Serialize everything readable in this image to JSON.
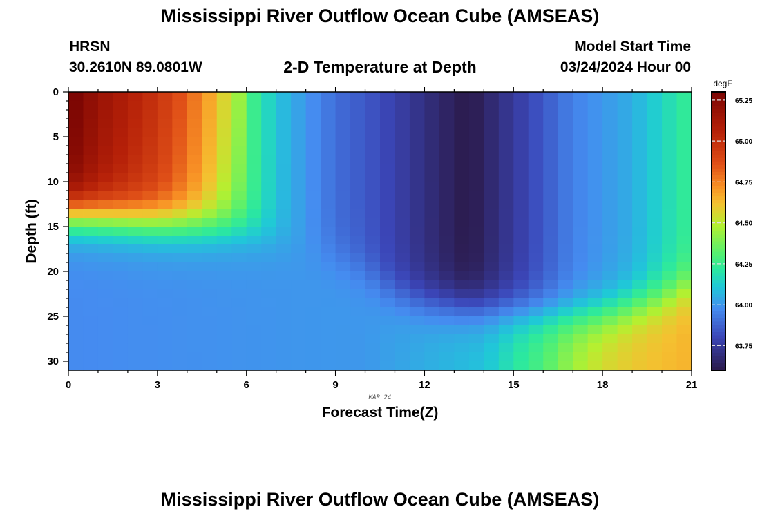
{
  "page": {
    "title_top": "Mississippi River Outflow Ocean Cube (AMSEAS)",
    "title_bottom": "Mississippi River Outflow Ocean Cube (AMSEAS)",
    "station": "HRSN",
    "coords": "30.2610N  89.0801W",
    "subtitle": "2-D Temperature at Depth",
    "model_start_label": "Model Start Time",
    "model_start_value": "03/24/2024 Hour 00"
  },
  "chart_data": {
    "type": "heatmap",
    "title": "2-D Temperature at Depth",
    "xlabel": "Forecast Time(Z)",
    "ylabel": "Depth (ft)",
    "x_ticks": [
      "0",
      "3",
      "6",
      "9",
      "12",
      "15",
      "18",
      "21"
    ],
    "y_ticks": [
      "0",
      "5",
      "10",
      "15",
      "20",
      "25",
      "30"
    ],
    "xlim": [
      0,
      21
    ],
    "ylim": [
      31,
      0
    ],
    "date_annotation": "MAR 24",
    "colorbar": {
      "unit": "degF",
      "ticks": [
        "63.75",
        "64.00",
        "64.25",
        "64.50",
        "64.75",
        "65.00",
        "65.25"
      ],
      "range": [
        63.6,
        65.3
      ]
    },
    "temperature_degF": {
      "shallow_profile": {
        "x": [
          0,
          1,
          2,
          3,
          4,
          5,
          6,
          7,
          8,
          9,
          10,
          11,
          12,
          13,
          13.5,
          14,
          15,
          16,
          17,
          18,
          19,
          20,
          21
        ],
        "values": [
          65.25,
          65.1,
          65.0,
          64.9,
          64.75,
          64.55,
          64.3,
          64.1,
          64.0,
          63.9,
          63.85,
          63.78,
          63.7,
          63.63,
          63.6,
          63.65,
          63.75,
          63.85,
          63.95,
          64.0,
          64.05,
          64.15,
          64.25
        ]
      },
      "deep_profile": {
        "x": [
          0,
          6,
          9,
          10,
          12,
          14,
          15,
          16,
          17,
          18,
          19,
          21
        ],
        "values": [
          63.97,
          63.99,
          64.0,
          64.0,
          64.05,
          64.1,
          64.2,
          64.3,
          64.45,
          64.55,
          64.6,
          64.65
        ]
      },
      "thermocline_depth_ft": {
        "x": [
          0,
          3,
          5,
          6,
          7,
          9,
          10,
          10.5,
          11,
          12,
          15,
          17,
          18,
          19,
          20,
          21
        ],
        "values": [
          13.5,
          14.5,
          15.0,
          15.5,
          16.5,
          18.5,
          20.0,
          21.5,
          22.5,
          23.5,
          24.5,
          25.0,
          24.8,
          24.0,
          23.0,
          21.5
        ]
      }
    }
  }
}
